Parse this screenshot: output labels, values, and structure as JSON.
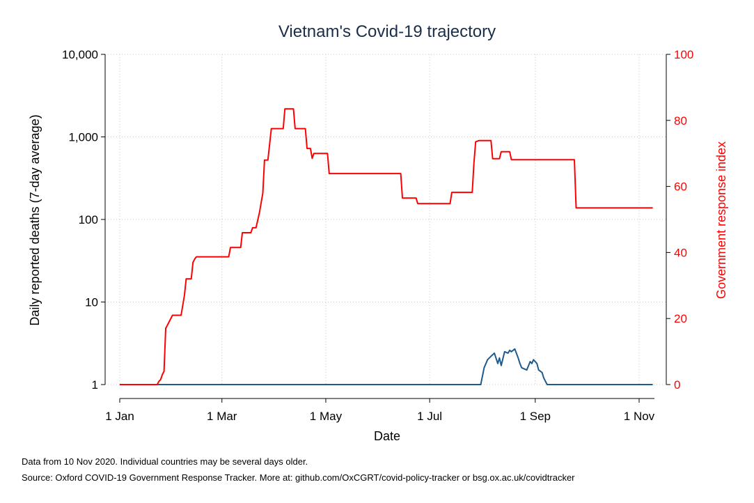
{
  "chart_data": {
    "type": "line",
    "title": "Vietnam's Covid-19 trajectory",
    "xlabel": "Date",
    "ylabel_left": "Daily reported deaths (7-day average)",
    "ylabel_right": "Government response index",
    "x_ticks": [
      {
        "date": "2020-01-01",
        "label": "1 Jan"
      },
      {
        "date": "2020-03-01",
        "label": "1 Mar"
      },
      {
        "date": "2020-05-01",
        "label": "1 May"
      },
      {
        "date": "2020-07-01",
        "label": "1 Jul"
      },
      {
        "date": "2020-09-01",
        "label": "1 Sep"
      },
      {
        "date": "2020-11-01",
        "label": "1 Nov"
      }
    ],
    "xlim": [
      "2020-01-01",
      "2020-11-10"
    ],
    "y_left": {
      "scale": "log",
      "lim": [
        1,
        10000
      ],
      "ticks": [
        {
          "value": 1,
          "label": "1"
        },
        {
          "value": 10,
          "label": "10"
        },
        {
          "value": 100,
          "label": "100"
        },
        {
          "value": 1000,
          "label": "1,000"
        },
        {
          "value": 10000,
          "label": "10,000"
        }
      ]
    },
    "y_right": {
      "scale": "linear",
      "lim": [
        0,
        100
      ],
      "ticks": [
        {
          "value": 0,
          "label": "0"
        },
        {
          "value": 20,
          "label": "20"
        },
        {
          "value": 40,
          "label": "40"
        },
        {
          "value": 60,
          "label": "60"
        },
        {
          "value": 80,
          "label": "80"
        },
        {
          "value": 100,
          "label": "100"
        }
      ]
    },
    "grid": true,
    "series": [
      {
        "axis": "left",
        "color": "#1f5a8c",
        "points": [
          [
            "2020-01-01",
            1
          ],
          [
            "2020-07-31",
            1
          ],
          [
            "2020-08-02",
            1.6
          ],
          [
            "2020-08-04",
            2.0
          ],
          [
            "2020-08-06",
            2.2
          ],
          [
            "2020-08-08",
            2.4
          ],
          [
            "2020-08-10",
            1.8
          ],
          [
            "2020-08-11",
            2.1
          ],
          [
            "2020-08-12",
            1.7
          ],
          [
            "2020-08-14",
            2.5
          ],
          [
            "2020-08-16",
            2.4
          ],
          [
            "2020-08-17",
            2.6
          ],
          [
            "2020-08-18",
            2.5
          ],
          [
            "2020-08-20",
            2.7
          ],
          [
            "2020-08-22",
            2.1
          ],
          [
            "2020-08-23",
            1.8
          ],
          [
            "2020-08-24",
            1.6
          ],
          [
            "2020-08-27",
            1.5
          ],
          [
            "2020-08-29",
            1.9
          ],
          [
            "2020-08-30",
            1.8
          ],
          [
            "2020-08-31",
            2.0
          ],
          [
            "2020-09-02",
            1.8
          ],
          [
            "2020-09-03",
            1.5
          ],
          [
            "2020-09-05",
            1.4
          ],
          [
            "2020-09-06",
            1.2
          ],
          [
            "2020-09-08",
            1
          ],
          [
            "2020-11-09",
            1
          ]
        ]
      },
      {
        "axis": "right",
        "color": "#ff0000",
        "points": [
          [
            "2020-01-01",
            0
          ],
          [
            "2020-01-23",
            0
          ],
          [
            "2020-01-24",
            1
          ],
          [
            "2020-01-25",
            1.5
          ],
          [
            "2020-01-26",
            3
          ],
          [
            "2020-01-27",
            4
          ],
          [
            "2020-01-28",
            17
          ],
          [
            "2020-01-29",
            18
          ],
          [
            "2020-01-30",
            19
          ],
          [
            "2020-02-01",
            21
          ],
          [
            "2020-02-06",
            21
          ],
          [
            "2020-02-08",
            27
          ],
          [
            "2020-02-09",
            32
          ],
          [
            "2020-02-12",
            32
          ],
          [
            "2020-02-13",
            37
          ],
          [
            "2020-02-14",
            38
          ],
          [
            "2020-02-15",
            38.7
          ],
          [
            "2020-03-05",
            38.7
          ],
          [
            "2020-03-06",
            41.5
          ],
          [
            "2020-03-12",
            41.5
          ],
          [
            "2020-03-13",
            46
          ],
          [
            "2020-03-18",
            46
          ],
          [
            "2020-03-19",
            47.5
          ],
          [
            "2020-03-21",
            47.5
          ],
          [
            "2020-03-23",
            52
          ],
          [
            "2020-03-25",
            58
          ],
          [
            "2020-03-26",
            68
          ],
          [
            "2020-03-28",
            68
          ],
          [
            "2020-03-30",
            77.5
          ],
          [
            "2020-04-06",
            77.5
          ],
          [
            "2020-04-07",
            83.5
          ],
          [
            "2020-04-12",
            83.5
          ],
          [
            "2020-04-13",
            77.5
          ],
          [
            "2020-04-19",
            77.5
          ],
          [
            "2020-04-20",
            71.5
          ],
          [
            "2020-04-22",
            71.5
          ],
          [
            "2020-04-23",
            68.5
          ],
          [
            "2020-04-24",
            70
          ],
          [
            "2020-05-02",
            70
          ],
          [
            "2020-05-03",
            63.9
          ],
          [
            "2020-06-14",
            63.9
          ],
          [
            "2020-06-15",
            56.5
          ],
          [
            "2020-06-23",
            56.5
          ],
          [
            "2020-06-24",
            54.8
          ],
          [
            "2020-07-13",
            54.8
          ],
          [
            "2020-07-14",
            58.2
          ],
          [
            "2020-07-26",
            58.2
          ],
          [
            "2020-07-27",
            67
          ],
          [
            "2020-07-28",
            73.5
          ],
          [
            "2020-07-30",
            73.9
          ],
          [
            "2020-08-06",
            73.9
          ],
          [
            "2020-08-07",
            68.4
          ],
          [
            "2020-08-11",
            68.4
          ],
          [
            "2020-08-12",
            70.5
          ],
          [
            "2020-08-17",
            70.5
          ],
          [
            "2020-08-18",
            68.1
          ],
          [
            "2020-09-24",
            68.1
          ],
          [
            "2020-09-25",
            53.5
          ],
          [
            "2020-11-09",
            53.5
          ]
        ]
      }
    ]
  },
  "footnotes": [
    "Data from 10 Nov 2020. Individual countries may be several days older.",
    "Source: Oxford COVID-19 Government Response Tracker. More at: github.com/OxCGRT/covid-policy-tracker or bsg.ox.ac.uk/covidtracker"
  ],
  "colors": {
    "title": "#1a2e4a",
    "deaths_line": "#1f5a8c",
    "response_line": "#ff0000",
    "right_axis": "#ff0000",
    "grid": "#c8c8c8"
  }
}
